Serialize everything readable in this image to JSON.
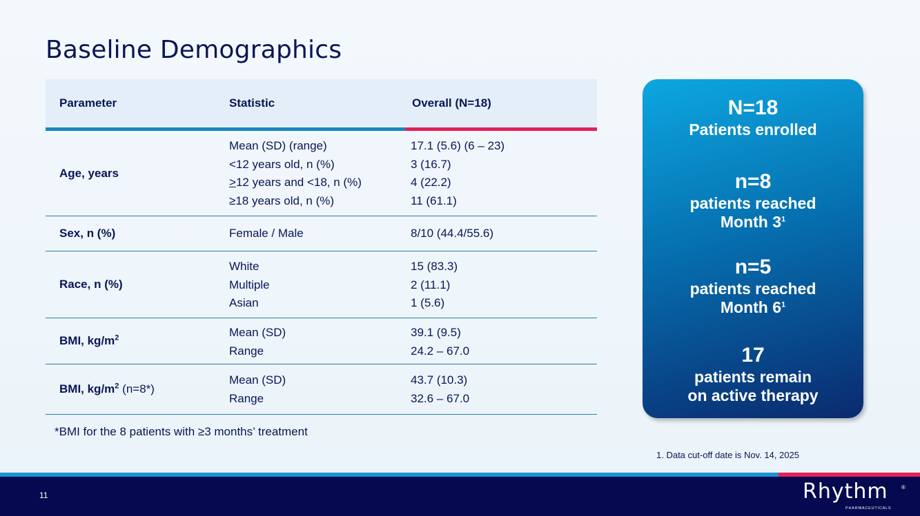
{
  "title": "Baseline Demographics",
  "table": {
    "headers": [
      "Parameter",
      "Statistic",
      "Overall (N=18)"
    ],
    "rows": [
      {
        "param": "Age, years",
        "stats": [
          "Mean (SD) (range)",
          "<12 years old, n (%)",
          ">12 years and <18, n (%)",
          "≥18 years old, n (%)"
        ],
        "values": [
          "17.1 (5.6) (6 – 23)",
          "3 (16.7)",
          "4 (22.2)",
          "11 (61.1)"
        ]
      },
      {
        "param": "Sex, n (%)",
        "stats": [
          "Female / Male"
        ],
        "values": [
          "8/10 (44.4/55.6)"
        ]
      },
      {
        "param": "Race, n (%)",
        "stats": [
          "White",
          "Multiple",
          "Asian"
        ],
        "values": [
          "15 (83.3)",
          "2 (11.1)",
          "1 (5.6)"
        ]
      },
      {
        "param": "BMI, kg/m",
        "param_sup": "2",
        "stats": [
          "Mean (SD)",
          "Range"
        ],
        "values": [
          "39.1 (9.5)",
          "24.2 – 67.0"
        ]
      },
      {
        "param": "BMI, kg/m",
        "param_sup": "2",
        "param_note": "(n=8*)",
        "stats": [
          "Mean (SD)",
          "Range"
        ],
        "values": [
          "43.7 (10.3)",
          "32.6  – 67.0"
        ]
      }
    ]
  },
  "footnote": "*BMI for the 8 patients with ≥3 months’ treatment",
  "panel": {
    "b1_big": "N=18",
    "b1_line1": "Patients enrolled",
    "b2_big": "n=8",
    "b2_line1": "patients reached",
    "b2_line2": "Month 3",
    "b2_sup": "1",
    "b3_big": "n=5",
    "b3_line1": "patients reached",
    "b3_line2": "Month 6",
    "b3_sup": "1",
    "b4_big": "17",
    "b4_line1": "patients remain",
    "b4_line2": "on active therapy"
  },
  "cutoff_note": "1. Data cut-off date is Nov. 14, 2025",
  "footer": {
    "page_number": "11",
    "logo_text": "Rhythm",
    "logo_reg": "®",
    "logo_sub": "PHARMACEUTICALS"
  },
  "colors": {
    "navy": "#05094f",
    "blue": "#1a86bf",
    "pink": "#e3215b"
  }
}
